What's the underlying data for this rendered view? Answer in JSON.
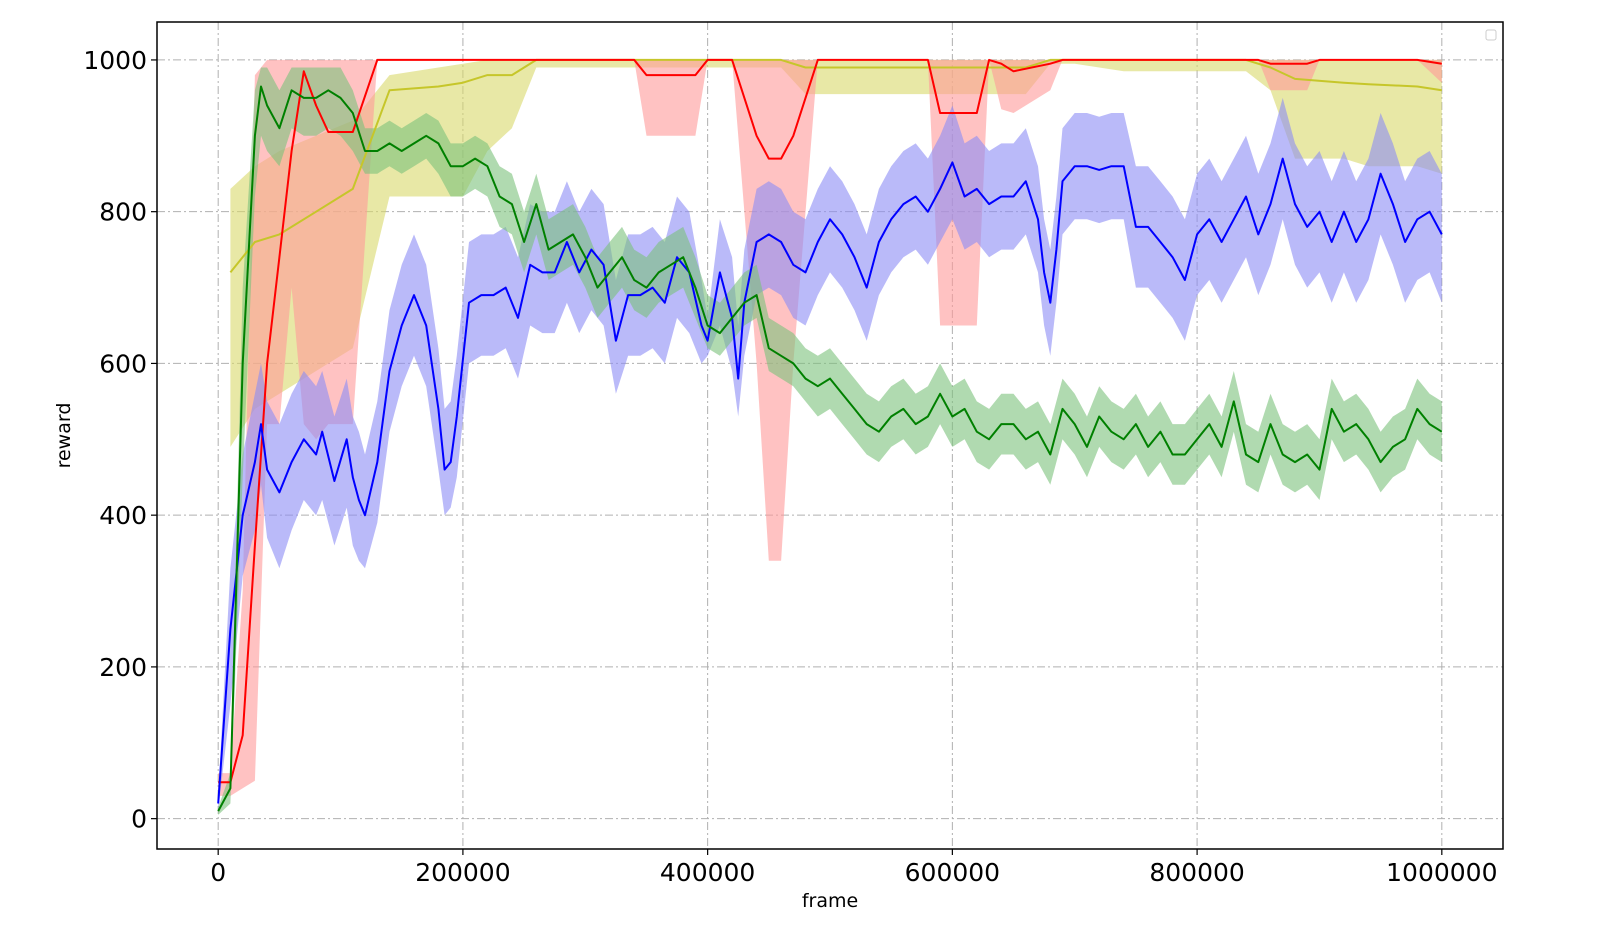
{
  "chart_data": {
    "type": "line",
    "xlabel": "frame",
    "ylabel": "reward",
    "xlim": [
      -50000,
      1050000
    ],
    "ylim": [
      -40,
      1050
    ],
    "grid": true,
    "legend": "top-right",
    "xticks": [
      0,
      200000,
      400000,
      600000,
      800000,
      1000000
    ],
    "xtick_labels": [
      "0",
      "200000",
      "400000",
      "600000",
      "800000",
      "1000000"
    ],
    "yticks": [
      0,
      200,
      400,
      600,
      800,
      1000
    ],
    "ytick_labels": [
      "0",
      "200",
      "400",
      "600",
      "800",
      "1000"
    ],
    "series": [
      {
        "color": "#c6c62a",
        "band_color": "#d8d86a",
        "x": [
          10000,
          30000,
          50000,
          80000,
          110000,
          140000,
          180000,
          200000,
          220000,
          240000,
          260000,
          280000,
          400000,
          460000,
          480000,
          600000,
          660000,
          680000,
          700000,
          740000,
          840000,
          860000,
          880000,
          920000,
          940000,
          980000,
          1000000
        ],
        "y": [
          720,
          760,
          770,
          800,
          830,
          960,
          965,
          970,
          980,
          980,
          1000,
          1000,
          1000,
          1000,
          990,
          990,
          990,
          1000,
          1000,
          1000,
          1000,
          990,
          975,
          970,
          968,
          965,
          960
        ],
        "lower": [
          490,
          540,
          560,
          590,
          620,
          820,
          820,
          820,
          880,
          910,
          990,
          990,
          990,
          990,
          955,
          955,
          955,
          995,
          995,
          985,
          985,
          960,
          870,
          870,
          860,
          860,
          850
        ],
        "upper": [
          830,
          860,
          880,
          900,
          920,
          980,
          990,
          995,
          1000,
          1000,
          1000,
          1000,
          1000,
          1000,
          1000,
          1000,
          1000,
          1000,
          1000,
          1000,
          1000,
          1000,
          1000,
          1000,
          1000,
          1000,
          1000
        ]
      },
      {
        "color": "#ff0000",
        "band_color": "#ff9a9a",
        "x": [
          0,
          10000,
          20000,
          30000,
          40000,
          50000,
          60000,
          70000,
          80000,
          90000,
          100000,
          110000,
          130000,
          340000,
          350000,
          390000,
          400000,
          420000,
          440000,
          450000,
          460000,
          470000,
          490000,
          580000,
          590000,
          610000,
          620000,
          630000,
          640000,
          650000,
          680000,
          690000,
          700000,
          850000,
          860000,
          890000,
          900000,
          980000,
          1000000
        ],
        "y": [
          48,
          48,
          110,
          360,
          600,
          740,
          880,
          985,
          940,
          905,
          905,
          905,
          1000,
          1000,
          980,
          980,
          1000,
          1000,
          900,
          870,
          870,
          900,
          1000,
          1000,
          930,
          930,
          930,
          1000,
          995,
          985,
          995,
          1000,
          1000,
          1000,
          995,
          995,
          1000,
          1000,
          995
        ],
        "lower": [
          30,
          30,
          40,
          50,
          520,
          520,
          700,
          520,
          500,
          520,
          520,
          520,
          1000,
          1000,
          900,
          900,
          1000,
          1000,
          600,
          340,
          340,
          600,
          1000,
          1000,
          650,
          650,
          650,
          1000,
          935,
          930,
          960,
          1000,
          1000,
          1000,
          960,
          960,
          1000,
          1000,
          970
        ],
        "upper": [
          60,
          60,
          300,
          980,
          1000,
          1000,
          1000,
          1000,
          1000,
          1000,
          1000,
          1000,
          1000,
          1000,
          1000,
          1000,
          1000,
          1000,
          1000,
          1000,
          1000,
          1000,
          1000,
          1000,
          1000,
          1000,
          1000,
          1000,
          1000,
          1000,
          1000,
          1000,
          1000,
          1000,
          1000,
          1000,
          1000,
          1000,
          1000
        ]
      },
      {
        "color": "#0000ff",
        "band_color": "#8c8cf5",
        "x": [
          0,
          10000,
          20000,
          30000,
          35000,
          40000,
          50000,
          60000,
          70000,
          80000,
          85000,
          95000,
          105000,
          110000,
          115000,
          120000,
          130000,
          140000,
          150000,
          160000,
          170000,
          180000,
          185000,
          190000,
          195000,
          205000,
          215000,
          225000,
          235000,
          245000,
          255000,
          265000,
          275000,
          285000,
          295000,
          305000,
          315000,
          325000,
          335000,
          345000,
          355000,
          365000,
          375000,
          385000,
          395000,
          400000,
          410000,
          420000,
          425000,
          430000,
          440000,
          450000,
          460000,
          470000,
          480000,
          490000,
          500000,
          510000,
          520000,
          530000,
          540000,
          550000,
          560000,
          570000,
          580000,
          590000,
          600000,
          610000,
          620000,
          630000,
          640000,
          650000,
          660000,
          670000,
          675000,
          680000,
          685000,
          690000,
          700000,
          710000,
          720000,
          730000,
          740000,
          750000,
          760000,
          770000,
          780000,
          790000,
          800000,
          810000,
          820000,
          830000,
          840000,
          850000,
          860000,
          870000,
          880000,
          890000,
          900000,
          910000,
          920000,
          930000,
          940000,
          950000,
          960000,
          970000,
          980000,
          990000,
          1000000
        ],
        "y": [
          20,
          250,
          400,
          470,
          520,
          460,
          430,
          470,
          500,
          480,
          510,
          445,
          500,
          450,
          420,
          400,
          470,
          590,
          650,
          690,
          650,
          540,
          460,
          470,
          530,
          680,
          690,
          690,
          700,
          660,
          730,
          720,
          720,
          760,
          720,
          750,
          730,
          630,
          690,
          690,
          700,
          680,
          740,
          720,
          650,
          630,
          720,
          660,
          580,
          680,
          760,
          770,
          760,
          730,
          720,
          760,
          790,
          770,
          740,
          700,
          760,
          790,
          810,
          820,
          800,
          830,
          865,
          820,
          830,
          810,
          820,
          820,
          840,
          790,
          720,
          680,
          750,
          840,
          860,
          860,
          855,
          860,
          860,
          780,
          780,
          760,
          740,
          710,
          770,
          790,
          760,
          790,
          820,
          770,
          810,
          870,
          810,
          780,
          800,
          760,
          800,
          760,
          790,
          850,
          810,
          760,
          790,
          800,
          770
        ],
        "lower": [
          10,
          150,
          320,
          380,
          440,
          370,
          330,
          380,
          420,
          400,
          420,
          360,
          410,
          360,
          340,
          330,
          390,
          510,
          570,
          610,
          570,
          460,
          400,
          410,
          450,
          600,
          610,
          610,
          620,
          580,
          650,
          640,
          640,
          680,
          640,
          670,
          650,
          560,
          610,
          610,
          620,
          600,
          660,
          640,
          600,
          610,
          650,
          590,
          530,
          610,
          690,
          700,
          690,
          660,
          650,
          690,
          720,
          700,
          670,
          630,
          690,
          720,
          740,
          750,
          730,
          760,
          790,
          750,
          760,
          740,
          750,
          750,
          770,
          720,
          650,
          610,
          680,
          770,
          790,
          790,
          785,
          790,
          790,
          700,
          700,
          680,
          660,
          630,
          690,
          710,
          680,
          710,
          740,
          690,
          730,
          790,
          730,
          700,
          720,
          680,
          720,
          680,
          710,
          770,
          730,
          680,
          710,
          720,
          680
        ],
        "upper": [
          30,
          330,
          480,
          560,
          600,
          550,
          520,
          560,
          590,
          570,
          590,
          530,
          580,
          530,
          510,
          480,
          550,
          670,
          730,
          770,
          730,
          620,
          540,
          550,
          610,
          760,
          770,
          770,
          780,
          740,
          810,
          800,
          800,
          840,
          800,
          830,
          810,
          710,
          770,
          770,
          780,
          760,
          820,
          800,
          710,
          660,
          790,
          740,
          650,
          750,
          830,
          840,
          830,
          800,
          790,
          830,
          860,
          840,
          810,
          770,
          830,
          860,
          880,
          890,
          870,
          900,
          940,
          890,
          900,
          880,
          890,
          890,
          910,
          860,
          790,
          750,
          820,
          910,
          930,
          930,
          925,
          930,
          930,
          860,
          860,
          840,
          820,
          790,
          850,
          870,
          840,
          870,
          900,
          850,
          890,
          950,
          890,
          860,
          880,
          840,
          880,
          840,
          870,
          930,
          890,
          840,
          870,
          880,
          850
        ]
      },
      {
        "color": "#008000",
        "band_color": "#7cc27c",
        "x": [
          0,
          10000,
          20000,
          30000,
          35000,
          40000,
          50000,
          60000,
          70000,
          80000,
          90000,
          100000,
          110000,
          120000,
          130000,
          140000,
          150000,
          160000,
          170000,
          180000,
          190000,
          200000,
          210000,
          220000,
          230000,
          240000,
          250000,
          260000,
          270000,
          280000,
          290000,
          300000,
          310000,
          320000,
          330000,
          340000,
          350000,
          360000,
          370000,
          380000,
          390000,
          400000,
          410000,
          420000,
          430000,
          440000,
          450000,
          460000,
          470000,
          480000,
          490000,
          500000,
          510000,
          520000,
          530000,
          540000,
          550000,
          560000,
          570000,
          580000,
          590000,
          600000,
          610000,
          620000,
          630000,
          640000,
          650000,
          660000,
          670000,
          680000,
          690000,
          700000,
          710000,
          720000,
          730000,
          740000,
          750000,
          760000,
          770000,
          780000,
          790000,
          800000,
          810000,
          820000,
          830000,
          840000,
          850000,
          860000,
          870000,
          880000,
          890000,
          900000,
          910000,
          920000,
          930000,
          940000,
          950000,
          960000,
          970000,
          980000,
          990000,
          1000000
        ],
        "y": [
          10,
          40,
          600,
          900,
          965,
          940,
          910,
          960,
          950,
          950,
          960,
          950,
          930,
          880,
          880,
          890,
          880,
          890,
          900,
          890,
          860,
          860,
          870,
          860,
          820,
          810,
          760,
          810,
          750,
          760,
          770,
          740,
          700,
          720,
          740,
          710,
          700,
          720,
          730,
          740,
          700,
          650,
          640,
          660,
          680,
          690,
          620,
          610,
          600,
          580,
          570,
          580,
          560,
          540,
          520,
          510,
          530,
          540,
          520,
          530,
          560,
          530,
          540,
          510,
          500,
          520,
          520,
          500,
          510,
          480,
          540,
          520,
          490,
          530,
          510,
          500,
          520,
          490,
          510,
          480,
          480,
          500,
          520,
          490,
          550,
          480,
          470,
          520,
          480,
          470,
          480,
          460,
          540,
          510,
          520,
          500,
          470,
          490,
          500,
          540,
          520,
          510
        ],
        "lower": [
          5,
          20,
          450,
          820,
          900,
          880,
          860,
          910,
          900,
          900,
          910,
          900,
          880,
          850,
          850,
          860,
          850,
          860,
          870,
          850,
          820,
          820,
          830,
          820,
          780,
          770,
          720,
          770,
          710,
          720,
          730,
          700,
          660,
          680,
          700,
          670,
          660,
          680,
          690,
          700,
          660,
          620,
          610,
          630,
          650,
          660,
          590,
          580,
          570,
          550,
          530,
          540,
          520,
          500,
          480,
          470,
          490,
          500,
          480,
          490,
          520,
          490,
          500,
          470,
          460,
          480,
          480,
          460,
          470,
          440,
          500,
          480,
          450,
          490,
          470,
          460,
          480,
          450,
          470,
          440,
          440,
          460,
          480,
          450,
          510,
          440,
          430,
          480,
          440,
          430,
          440,
          420,
          500,
          470,
          480,
          460,
          430,
          450,
          460,
          500,
          480,
          470
        ],
        "upper": [
          15,
          60,
          700,
          960,
          990,
          990,
          960,
          990,
          990,
          990,
          990,
          990,
          960,
          910,
          910,
          920,
          910,
          920,
          930,
          920,
          890,
          890,
          900,
          890,
          860,
          850,
          800,
          850,
          790,
          800,
          810,
          780,
          740,
          760,
          780,
          750,
          740,
          760,
          770,
          780,
          740,
          690,
          680,
          700,
          720,
          730,
          660,
          650,
          640,
          620,
          610,
          620,
          600,
          580,
          560,
          550,
          570,
          580,
          560,
          570,
          600,
          570,
          580,
          550,
          540,
          560,
          560,
          540,
          550,
          520,
          580,
          560,
          530,
          570,
          550,
          540,
          560,
          530,
          550,
          520,
          520,
          540,
          560,
          530,
          590,
          520,
          510,
          560,
          520,
          510,
          520,
          500,
          580,
          550,
          560,
          540,
          510,
          530,
          540,
          580,
          560,
          550
        ]
      }
    ]
  }
}
